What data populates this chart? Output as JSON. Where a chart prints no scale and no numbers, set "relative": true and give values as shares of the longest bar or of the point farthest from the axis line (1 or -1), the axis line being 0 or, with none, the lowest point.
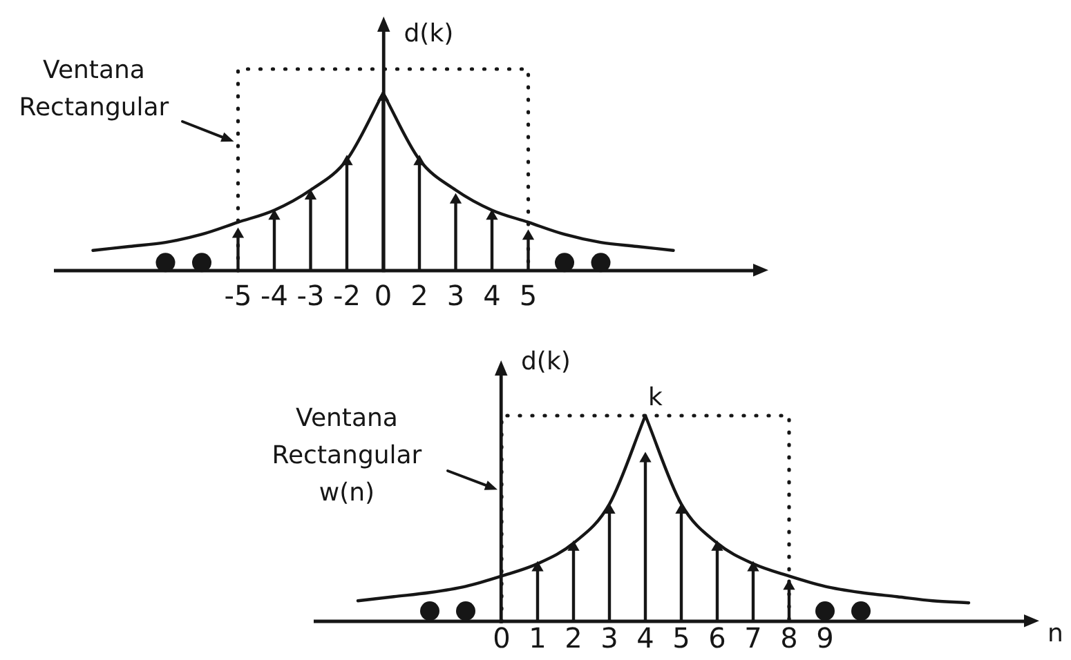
{
  "chart_data": [
    {
      "type": "lollipop",
      "relative": true,
      "ylabel": "d(k)",
      "categories": [
        null,
        null,
        null,
        null,
        null,
        "-5",
        "-4",
        "-3",
        "-2",
        "0",
        "2",
        "3",
        "4",
        "5",
        null,
        null,
        null,
        null,
        null,
        null
      ],
      "series": [
        {
          "type": "line",
          "color": "#161616",
          "line_style": "dotted",
          "x": [
            "-5",
            "-5",
            "5",
            "5"
          ],
          "values": [
            0,
            1,
            1,
            0
          ]
        },
        {
          "type": "line",
          "color": "#161616",
          "values": [
            null,
            0.1,
            0.12,
            0.14,
            0.18,
            0.24,
            0.3,
            0.4,
            0.55,
            0.88,
            null,
            null,
            null,
            null,
            null,
            null,
            null,
            null,
            null,
            null
          ]
        },
        {
          "type": "line",
          "color": "#161616",
          "values": [
            null,
            null,
            null,
            null,
            null,
            null,
            null,
            null,
            null,
            0.88,
            0.55,
            0.4,
            0.3,
            0.24,
            0.18,
            0.14,
            0.12,
            0.1,
            null,
            null
          ]
        },
        {
          "color": "#161616",
          "marker": "triangle",
          "values": [
            null,
            null,
            null,
            null,
            null,
            0.18,
            0.27,
            0.37,
            0.54,
            0.86,
            0.54,
            0.35,
            0.27,
            0.17,
            null,
            null,
            null,
            null,
            null,
            null
          ]
        },
        {
          "type": "scatter",
          "color": "#161616",
          "marker": "circle",
          "values": [
            null,
            null,
            null,
            0.04,
            0.04,
            null,
            null,
            null,
            null,
            null,
            null,
            null,
            null,
            null,
            0.04,
            0.04,
            null,
            null,
            null,
            null
          ]
        }
      ],
      "annotations": [
        "Ventana Rectangular"
      ]
    },
    {
      "type": "lollipop",
      "relative": true,
      "ylabel": "d(k)",
      "xlabel": "n",
      "categories": [
        null,
        null,
        null,
        null,
        null,
        "0",
        "1",
        "2",
        "3",
        "4",
        "5",
        "6",
        "7",
        "8",
        "9",
        null,
        null,
        null,
        null,
        null
      ],
      "series": [
        {
          "type": "line",
          "color": "#161616",
          "line_style": "dotted",
          "x": [
            "0",
            "0",
            "8",
            "8"
          ],
          "values": [
            0,
            1,
            1,
            0
          ]
        },
        {
          "type": "line",
          "color": "#161616",
          "values": [
            null,
            0.1,
            0.12,
            0.14,
            0.17,
            0.22,
            0.28,
            0.38,
            0.57,
            1,
            null,
            null,
            null,
            null,
            null,
            null,
            null,
            null,
            null,
            null
          ]
        },
        {
          "type": "line",
          "color": "#161616",
          "values": [
            null,
            null,
            null,
            null,
            null,
            null,
            null,
            null,
            null,
            1,
            0.57,
            0.38,
            0.28,
            0.22,
            0.17,
            0.14,
            0.12,
            0.1,
            0.09,
            null
          ]
        },
        {
          "color": "#161616",
          "marker": "triangle",
          "values": [
            null,
            null,
            null,
            null,
            null,
            null,
            0.26,
            0.36,
            0.54,
            0.79,
            0.54,
            0.36,
            0.26,
            0.17,
            null,
            null,
            null,
            null,
            null,
            null
          ]
        },
        {
          "type": "scatter",
          "color": "#161616",
          "marker": "circle",
          "values": [
            null,
            null,
            null,
            0.05,
            0.05,
            null,
            null,
            null,
            null,
            null,
            null,
            null,
            null,
            null,
            0.05,
            0.05,
            null,
            null,
            null,
            null
          ]
        }
      ],
      "annotations": [
        "Ventana Rectangular w(n)",
        {
          "text": "k",
          "x": "4",
          "y": 1
        }
      ]
    }
  ]
}
